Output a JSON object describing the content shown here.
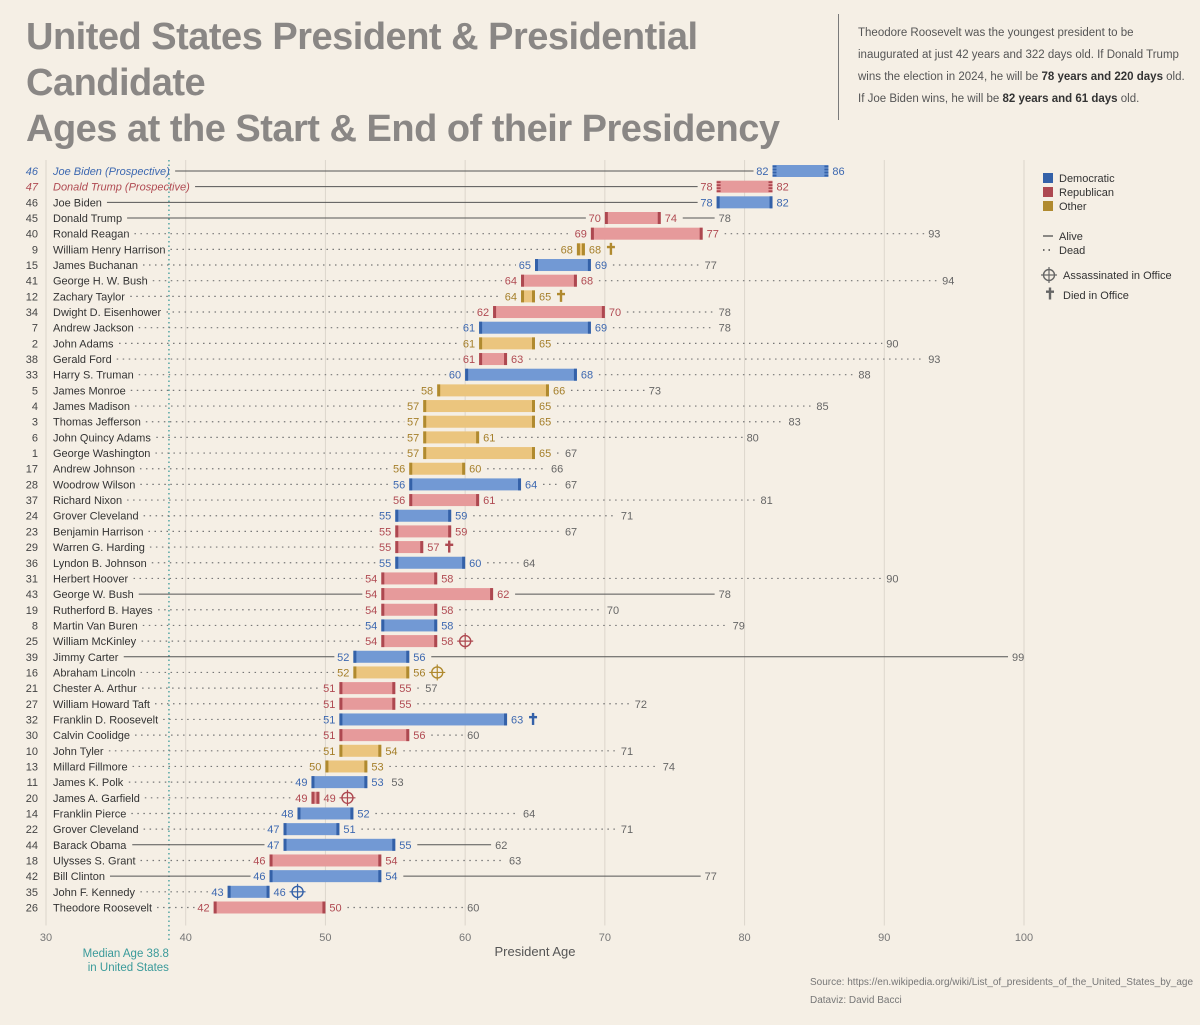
{
  "header": {
    "title_line1": "United States President & Presidential Candidate",
    "title_line2": "Ages at the Start & End of their Presidency"
  },
  "note": {
    "part1": "Theodore Roosevelt was the youngest president  to be inaugurated at just 42 years and 322 days old. If Donald Trump wins the election in 2024, he will be ",
    "trump_age": "78 years and 220 days",
    "part2": " old. If Joe Biden wins, he will be ",
    "biden_age": "82 years and 61 days",
    "part3": " old."
  },
  "footer": {
    "source": "Source: https://en.wikipedia.org/wiki/List_of_presidents_of_the_United_States_by_age",
    "credit": "Dataviz: David Bacci"
  },
  "colors": {
    "D": "#7299d4",
    "R": "#e69a9b",
    "O": "#ebc57e",
    "D_dark": "#3461a8",
    "R_dark": "#ad4850",
    "O_dark": "#b08a2f",
    "D_text": "#3d68b0",
    "R_text": "#b04a52",
    "O_text": "#a57f2a",
    "median": "#3a9a9a",
    "background": "#f5efe5"
  },
  "legend": {
    "party": [
      {
        "key": "D",
        "label": "Democratic"
      },
      {
        "key": "R",
        "label": "Republican"
      },
      {
        "key": "O",
        "label": "Other"
      }
    ],
    "alive_label": "Alive",
    "dead_label": "Dead",
    "assassinated_label": "Assassinated in Office",
    "died_label": "Died in Office"
  },
  "chart_data": {
    "type": "bar",
    "xlabel": "President Age",
    "xlim": [
      30,
      100
    ],
    "xticks": [
      30,
      40,
      50,
      60,
      70,
      80,
      90,
      100
    ],
    "median": {
      "value": 38.8,
      "label_line1": "Median Age 38.8",
      "label_line2": "in United States"
    },
    "rows": [
      {
        "num": "46",
        "name": "Joe Biden (Prospective)",
        "party": "D",
        "start": 82,
        "end": 86,
        "prospective": true,
        "alive": true
      },
      {
        "num": "47",
        "name": "Donald Trump (Prospective)",
        "party": "R",
        "start": 78,
        "end": 82,
        "prospective": true,
        "alive": true
      },
      {
        "num": "46",
        "name": "Joe Biden",
        "party": "D",
        "start": 78,
        "end": 82,
        "alive": true
      },
      {
        "num": "45",
        "name": "Donald Trump",
        "party": "R",
        "start": 70,
        "end": 74,
        "alive": true,
        "now": 78
      },
      {
        "num": "40",
        "name": "Ronald Reagan",
        "party": "R",
        "start": 69,
        "end": 77,
        "death": 93
      },
      {
        "num": "9",
        "name": "William Henry Harrison",
        "party": "O",
        "start": 68,
        "end": 68,
        "died_in_office": true
      },
      {
        "num": "15",
        "name": "James Buchanan",
        "party": "D",
        "start": 65,
        "end": 69,
        "death": 77
      },
      {
        "num": "41",
        "name": "George H. W. Bush",
        "party": "R",
        "start": 64,
        "end": 68,
        "death": 94
      },
      {
        "num": "12",
        "name": "Zachary Taylor",
        "party": "O",
        "start": 64,
        "end": 65,
        "died_in_office": true
      },
      {
        "num": "34",
        "name": "Dwight D. Eisenhower",
        "party": "R",
        "start": 62,
        "end": 70,
        "death": 78
      },
      {
        "num": "7",
        "name": "Andrew Jackson",
        "party": "D",
        "start": 61,
        "end": 69,
        "death": 78
      },
      {
        "num": "2",
        "name": "John Adams",
        "party": "O",
        "start": 61,
        "end": 65,
        "death": 90
      },
      {
        "num": "38",
        "name": "Gerald Ford",
        "party": "R",
        "start": 61,
        "end": 63,
        "death": 93
      },
      {
        "num": "33",
        "name": "Harry S. Truman",
        "party": "D",
        "start": 60,
        "end": 68,
        "death": 88
      },
      {
        "num": "5",
        "name": "James Monroe",
        "party": "O",
        "start": 58,
        "end": 66,
        "death": 73
      },
      {
        "num": "4",
        "name": "James Madison",
        "party": "O",
        "start": 57,
        "end": 65,
        "death": 85
      },
      {
        "num": "3",
        "name": "Thomas Jefferson",
        "party": "O",
        "start": 57,
        "end": 65,
        "death": 83
      },
      {
        "num": "6",
        "name": "John Quincy Adams",
        "party": "O",
        "start": 57,
        "end": 61,
        "death": 80
      },
      {
        "num": "1",
        "name": "George Washington",
        "party": "O",
        "start": 57,
        "end": 65,
        "death": 67
      },
      {
        "num": "17",
        "name": "Andrew Johnson",
        "party": "O",
        "start": 56,
        "end": 60,
        "death": 66
      },
      {
        "num": "28",
        "name": "Woodrow Wilson",
        "party": "D",
        "start": 56,
        "end": 64,
        "death": 67
      },
      {
        "num": "37",
        "name": "Richard Nixon",
        "party": "R",
        "start": 56,
        "end": 61,
        "death": 81
      },
      {
        "num": "24",
        "name": "Grover Cleveland",
        "party": "D",
        "start": 55,
        "end": 59,
        "death": 71
      },
      {
        "num": "23",
        "name": "Benjamin Harrison",
        "party": "R",
        "start": 55,
        "end": 59,
        "death": 67
      },
      {
        "num": "29",
        "name": "Warren G. Harding",
        "party": "R",
        "start": 55,
        "end": 57,
        "died_in_office": true
      },
      {
        "num": "36",
        "name": "Lyndon B. Johnson",
        "party": "D",
        "start": 55,
        "end": 60,
        "death": 64
      },
      {
        "num": "31",
        "name": "Herbert Hoover",
        "party": "R",
        "start": 54,
        "end": 58,
        "death": 90
      },
      {
        "num": "43",
        "name": "George W. Bush",
        "party": "R",
        "start": 54,
        "end": 62,
        "alive": true,
        "now": 78
      },
      {
        "num": "19",
        "name": "Rutherford B. Hayes",
        "party": "R",
        "start": 54,
        "end": 58,
        "death": 70
      },
      {
        "num": "8",
        "name": "Martin Van Buren",
        "party": "D",
        "start": 54,
        "end": 58,
        "death": 79
      },
      {
        "num": "25",
        "name": "William McKinley",
        "party": "R",
        "start": 54,
        "end": 58,
        "assassinated": true
      },
      {
        "num": "39",
        "name": "Jimmy Carter",
        "party": "D",
        "start": 52,
        "end": 56,
        "alive": true,
        "now": 99
      },
      {
        "num": "16",
        "name": "Abraham Lincoln",
        "party": "O",
        "start": 52,
        "end": 56,
        "assassinated": true
      },
      {
        "num": "21",
        "name": "Chester A. Arthur",
        "party": "R",
        "start": 51,
        "end": 55,
        "death": 57
      },
      {
        "num": "27",
        "name": "William Howard Taft",
        "party": "R",
        "start": 51,
        "end": 55,
        "death": 72
      },
      {
        "num": "32",
        "name": "Franklin D. Roosevelt",
        "party": "D",
        "start": 51,
        "end": 63,
        "died_in_office": true
      },
      {
        "num": "30",
        "name": "Calvin Coolidge",
        "party": "R",
        "start": 51,
        "end": 56,
        "death": 60
      },
      {
        "num": "10",
        "name": "John Tyler",
        "party": "O",
        "start": 51,
        "end": 54,
        "death": 71
      },
      {
        "num": "13",
        "name": "Millard Fillmore",
        "party": "O",
        "start": 50,
        "end": 53,
        "death": 74
      },
      {
        "num": "11",
        "name": "James K. Polk",
        "party": "D",
        "start": 49,
        "end": 53,
        "death": 53
      },
      {
        "num": "20",
        "name": "James A. Garfield",
        "party": "R",
        "start": 49,
        "end": 49,
        "assassinated": true
      },
      {
        "num": "14",
        "name": "Franklin Pierce",
        "party": "D",
        "start": 48,
        "end": 52,
        "death": 64
      },
      {
        "num": "22",
        "name": "Grover Cleveland",
        "party": "D",
        "start": 47,
        "end": 51,
        "death": 71
      },
      {
        "num": "44",
        "name": "Barack Obama",
        "party": "D",
        "start": 47,
        "end": 55,
        "alive": true,
        "now": 62
      },
      {
        "num": "18",
        "name": "Ulysses S. Grant",
        "party": "R",
        "start": 46,
        "end": 54,
        "death": 63
      },
      {
        "num": "42",
        "name": "Bill Clinton",
        "party": "D",
        "start": 46,
        "end": 54,
        "alive": true,
        "now": 77
      },
      {
        "num": "35",
        "name": "John F. Kennedy",
        "party": "D",
        "start": 43,
        "end": 46,
        "assassinated": true
      },
      {
        "num": "26",
        "name": "Theodore Roosevelt",
        "party": "R",
        "start": 42,
        "end": 50,
        "death": 60
      }
    ]
  }
}
